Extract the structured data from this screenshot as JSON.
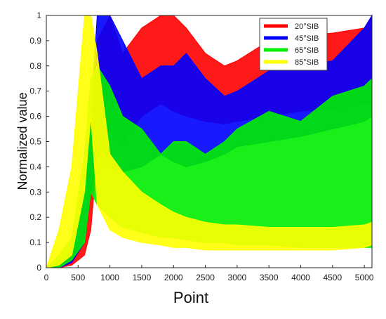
{
  "chart_data": {
    "type": "area",
    "title": "",
    "xlabel": "Point",
    "ylabel": "Normalized value",
    "xlim": [
      0,
      5120
    ],
    "ylim": [
      0,
      1
    ],
    "xticks": [
      0,
      500,
      1000,
      1500,
      2000,
      2500,
      3000,
      3500,
      4000,
      4500,
      5000
    ],
    "yticks": [
      0,
      0.1,
      0.2,
      0.3,
      0.4,
      0.5,
      0.6,
      0.7,
      0.8,
      0.9,
      1
    ],
    "legend_position": "top-right",
    "grid": false,
    "x": [
      0,
      200,
      400,
      600,
      700,
      800,
      1000,
      1200,
      1500,
      1800,
      2000,
      2200,
      2500,
      2800,
      3000,
      3500,
      4000,
      4500,
      5000,
      5120
    ],
    "series": [
      {
        "name": "20°SIB",
        "color": "#ff0000",
        "lower": [
          0,
          0.0,
          0.01,
          0.05,
          0.15,
          0.45,
          0.55,
          0.5,
          0.6,
          0.65,
          0.62,
          0.6,
          0.58,
          0.57,
          0.58,
          0.6,
          0.62,
          0.63,
          0.65,
          0.66
        ],
        "upper": [
          0,
          0.02,
          0.05,
          0.15,
          0.45,
          0.9,
          1.0,
          0.85,
          0.95,
          1.0,
          1.0,
          0.95,
          0.85,
          0.8,
          0.82,
          0.9,
          0.92,
          0.93,
          0.95,
          1.0
        ]
      },
      {
        "name": "45°SIB",
        "color": "#0000ff",
        "lower": [
          0,
          0.0,
          0.02,
          0.1,
          0.3,
          0.45,
          0.4,
          0.38,
          0.4,
          0.45,
          0.42,
          0.4,
          0.42,
          0.45,
          0.48,
          0.5,
          0.52,
          0.55,
          0.58,
          0.6
        ],
        "upper": [
          0,
          0.03,
          0.08,
          0.3,
          0.6,
          1.0,
          1.0,
          0.9,
          0.75,
          0.8,
          0.8,
          0.85,
          0.75,
          0.68,
          0.7,
          0.78,
          0.8,
          0.82,
          0.95,
          1.0
        ]
      },
      {
        "name": "65°SIB",
        "color": "#00ee00",
        "lower": [
          0,
          0.0,
          0.03,
          0.1,
          0.3,
          0.25,
          0.2,
          0.16,
          0.14,
          0.12,
          0.12,
          0.11,
          0.1,
          0.1,
          0.09,
          0.09,
          0.08,
          0.08,
          0.08,
          0.08
        ],
        "upper": [
          0,
          0.05,
          0.12,
          0.45,
          0.75,
          0.8,
          0.72,
          0.6,
          0.55,
          0.45,
          0.5,
          0.5,
          0.45,
          0.5,
          0.55,
          0.62,
          0.58,
          0.68,
          0.72,
          0.75
        ]
      },
      {
        "name": "85°SIB",
        "color": "#ffff00",
        "lower": [
          0,
          0.01,
          0.05,
          0.3,
          0.6,
          0.25,
          0.15,
          0.12,
          0.1,
          0.09,
          0.08,
          0.08,
          0.07,
          0.07,
          0.07,
          0.07,
          0.07,
          0.07,
          0.08,
          0.09
        ],
        "upper": [
          0,
          0.15,
          0.4,
          1.0,
          1.0,
          0.85,
          0.45,
          0.38,
          0.3,
          0.25,
          0.22,
          0.2,
          0.18,
          0.17,
          0.17,
          0.16,
          0.16,
          0.16,
          0.17,
          0.18
        ]
      }
    ]
  }
}
